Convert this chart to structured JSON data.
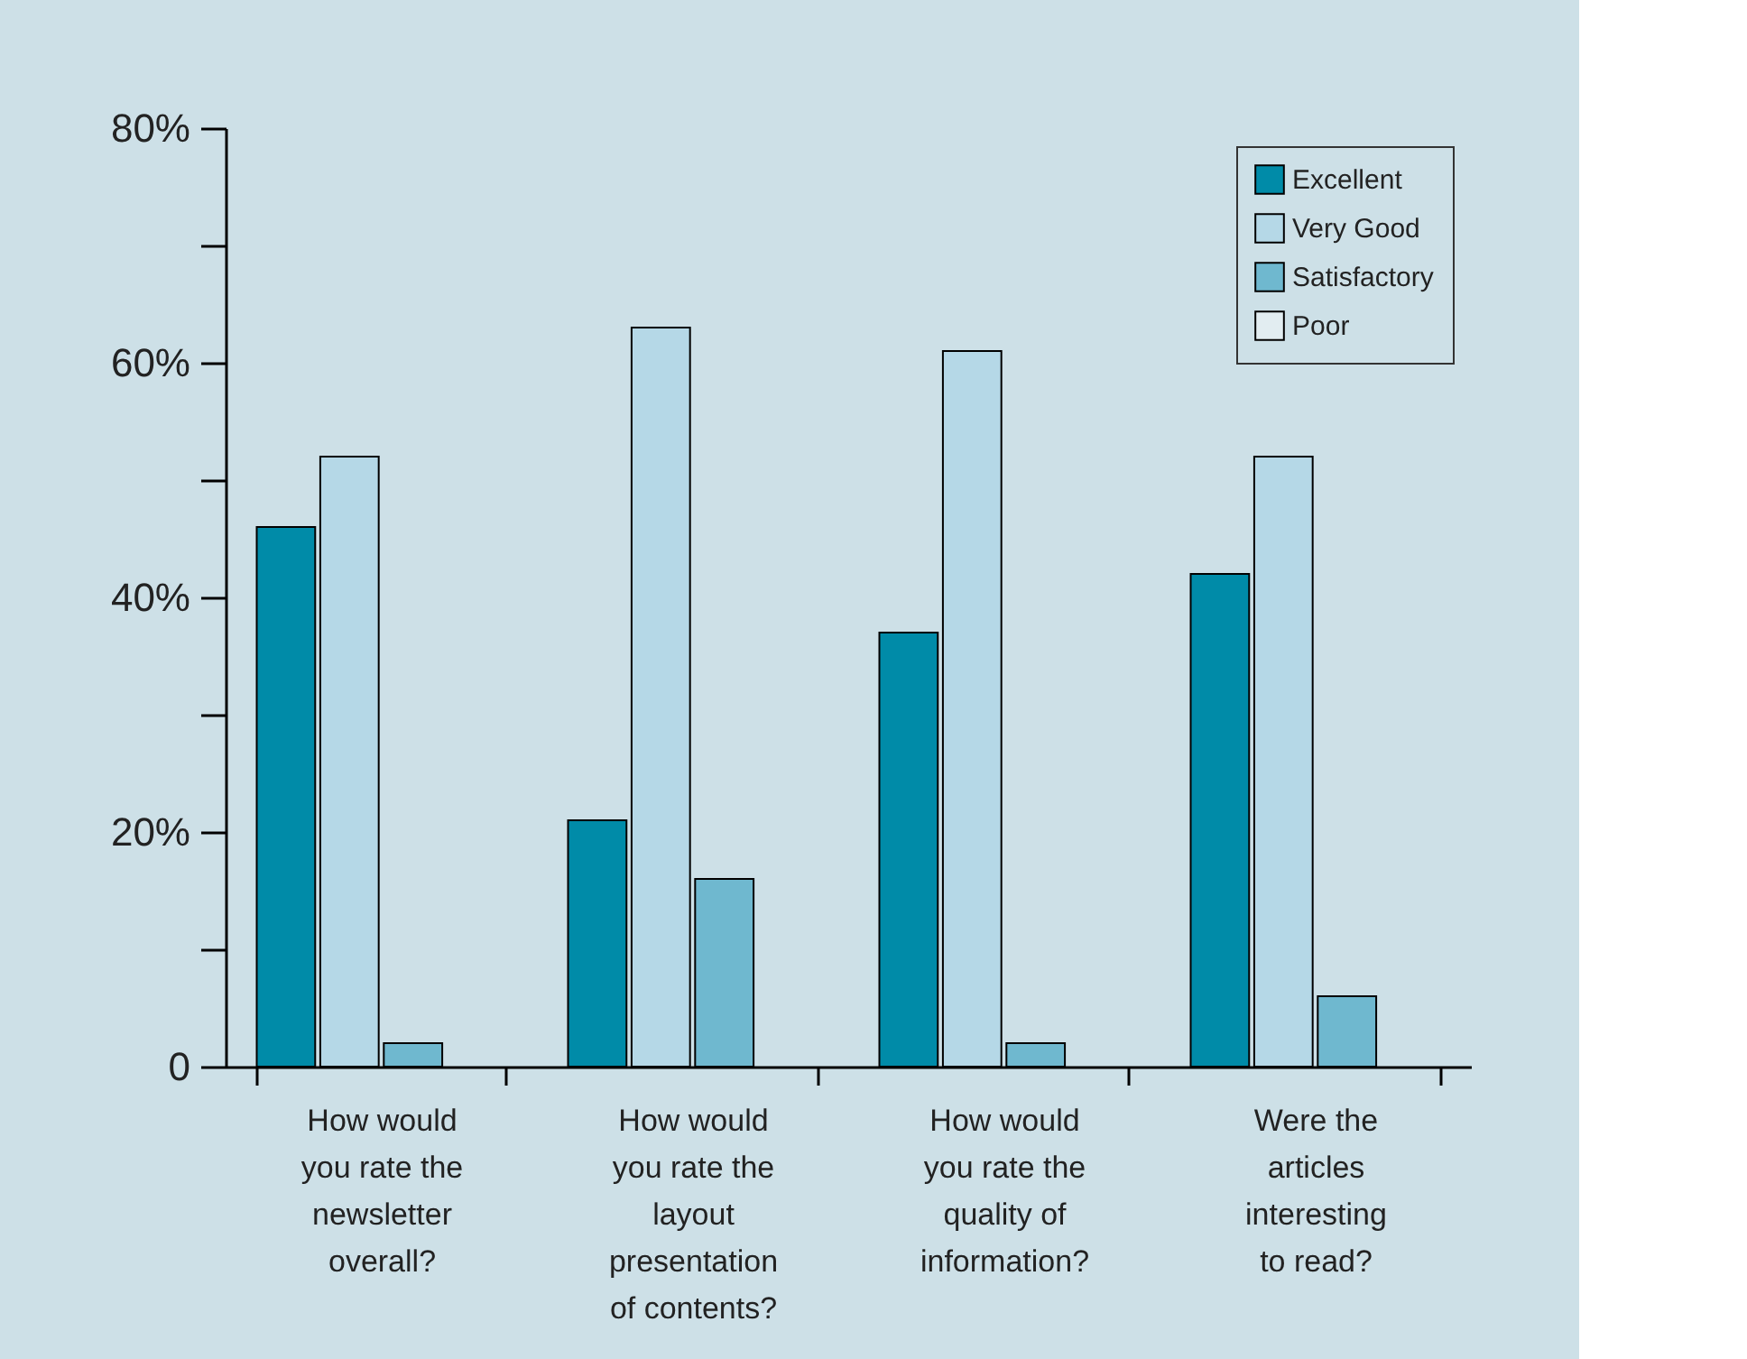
{
  "chart_data": {
    "type": "bar",
    "categories": [
      "How would you rate the newsletter overall?",
      "How would you rate the layout presentation of contents?",
      "How would you rate the quality of information?",
      "Were the articles interesting to read?"
    ],
    "series": [
      {
        "name": "Excellent",
        "color": "#008ba8",
        "values": [
          46,
          21,
          37,
          42
        ]
      },
      {
        "name": "Very Good",
        "color": "#b5d8e7",
        "values": [
          52,
          63,
          61,
          52
        ]
      },
      {
        "name": "Satisfactory",
        "color": "#6fb8cf",
        "values": [
          2,
          16,
          2,
          6
        ]
      },
      {
        "name": "Poor",
        "color": "#e2edf1",
        "values": [
          null,
          null,
          null,
          null
        ]
      }
    ],
    "ylim": [
      0,
      80
    ],
    "yticks": [
      {
        "value": 0,
        "label": "0"
      },
      {
        "value": 10,
        "label": null
      },
      {
        "value": 20,
        "label": "20%"
      },
      {
        "value": 30,
        "label": null
      },
      {
        "value": 40,
        "label": "40%"
      },
      {
        "value": 50,
        "label": null
      },
      {
        "value": 60,
        "label": "60%"
      },
      {
        "value": 70,
        "label": null
      },
      {
        "value": 80,
        "label": "80%"
      }
    ],
    "legend": "top right",
    "grid": false
  }
}
